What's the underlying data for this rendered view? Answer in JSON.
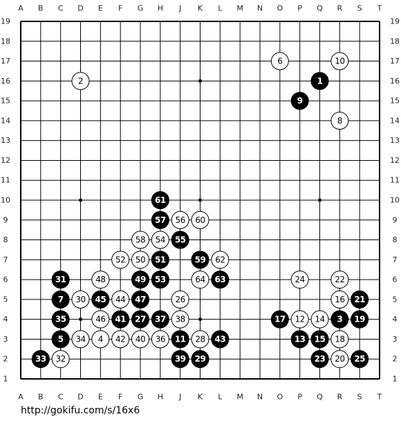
{
  "board": {
    "columns": [
      "A",
      "B",
      "C",
      "D",
      "E",
      "F",
      "G",
      "H",
      "J",
      "K",
      "L",
      "M",
      "N",
      "O",
      "P",
      "Q",
      "R",
      "S",
      "T"
    ],
    "rows": [
      19,
      18,
      17,
      16,
      15,
      14,
      13,
      12,
      11,
      10,
      9,
      8,
      7,
      6,
      5,
      4,
      3,
      2,
      1
    ],
    "stones": [
      {
        "move": 1,
        "color": "black",
        "col": "Q",
        "row": 16
      },
      {
        "move": 2,
        "color": "white",
        "col": "D",
        "row": 16
      },
      {
        "move": 3,
        "color": "black",
        "col": "R",
        "row": 4
      },
      {
        "move": 4,
        "color": "white",
        "col": "E",
        "row": 3
      },
      {
        "move": 5,
        "color": "black",
        "col": "C",
        "row": 3
      },
      {
        "move": 6,
        "color": "white",
        "col": "O",
        "row": 17
      },
      {
        "move": 7,
        "color": "black",
        "col": "C",
        "row": 5
      },
      {
        "move": 8,
        "color": "white",
        "col": "R",
        "row": 14
      },
      {
        "move": 9,
        "color": "black",
        "col": "P",
        "row": 15
      },
      {
        "move": 10,
        "color": "white",
        "col": "R",
        "row": 17
      },
      {
        "move": 11,
        "color": "black",
        "col": "J",
        "row": 3
      },
      {
        "move": 12,
        "color": "white",
        "col": "P",
        "row": 4
      },
      {
        "move": 13,
        "color": "black",
        "col": "P",
        "row": 3
      },
      {
        "move": 14,
        "color": "white",
        "col": "Q",
        "row": 4
      },
      {
        "move": 15,
        "color": "black",
        "col": "Q",
        "row": 3
      },
      {
        "move": 16,
        "color": "white",
        "col": "R",
        "row": 5
      },
      {
        "move": 17,
        "color": "black",
        "col": "O",
        "row": 4
      },
      {
        "move": 18,
        "color": "white",
        "col": "R",
        "row": 3
      },
      {
        "move": 19,
        "color": "black",
        "col": "S",
        "row": 4
      },
      {
        "move": 20,
        "color": "white",
        "col": "R",
        "row": 2
      },
      {
        "move": 21,
        "color": "black",
        "col": "S",
        "row": 5
      },
      {
        "move": 22,
        "color": "white",
        "col": "R",
        "row": 6
      },
      {
        "move": 23,
        "color": "black",
        "col": "Q",
        "row": 2
      },
      {
        "move": 24,
        "color": "white",
        "col": "P",
        "row": 6
      },
      {
        "move": 25,
        "color": "black",
        "col": "S",
        "row": 2
      },
      {
        "move": 26,
        "color": "white",
        "col": "J",
        "row": 5
      },
      {
        "move": 27,
        "color": "black",
        "col": "G",
        "row": 4
      },
      {
        "move": 28,
        "color": "white",
        "col": "K",
        "row": 3
      },
      {
        "move": 29,
        "color": "black",
        "col": "K",
        "row": 2
      },
      {
        "move": 30,
        "color": "white",
        "col": "D",
        "row": 5
      },
      {
        "move": 31,
        "color": "black",
        "col": "C",
        "row": 6
      },
      {
        "move": 32,
        "color": "white",
        "col": "C",
        "row": 2
      },
      {
        "move": 33,
        "color": "black",
        "col": "B",
        "row": 2
      },
      {
        "move": 34,
        "color": "white",
        "col": "D",
        "row": 3
      },
      {
        "move": 35,
        "color": "black",
        "col": "C",
        "row": 4
      },
      {
        "move": 36,
        "color": "white",
        "col": "H",
        "row": 3
      },
      {
        "move": 37,
        "color": "black",
        "col": "H",
        "row": 4
      },
      {
        "move": 38,
        "color": "white",
        "col": "J",
        "row": 4
      },
      {
        "move": 39,
        "color": "black",
        "col": "J",
        "row": 2
      },
      {
        "move": 40,
        "color": "white",
        "col": "G",
        "row": 3
      },
      {
        "move": 41,
        "color": "black",
        "col": "F",
        "row": 4
      },
      {
        "move": 42,
        "color": "white",
        "col": "F",
        "row": 3
      },
      {
        "move": 43,
        "color": "black",
        "col": "L",
        "row": 3
      },
      {
        "move": 44,
        "color": "white",
        "col": "F",
        "row": 5
      },
      {
        "move": 45,
        "color": "black",
        "col": "E",
        "row": 5
      },
      {
        "move": 46,
        "color": "white",
        "col": "E",
        "row": 4
      },
      {
        "move": 47,
        "color": "black",
        "col": "G",
        "row": 5
      },
      {
        "move": 48,
        "color": "white",
        "col": "E",
        "row": 6
      },
      {
        "move": 49,
        "color": "black",
        "col": "G",
        "row": 6
      },
      {
        "move": 50,
        "color": "white",
        "col": "G",
        "row": 7
      },
      {
        "move": 51,
        "color": "black",
        "col": "H",
        "row": 7
      },
      {
        "move": 52,
        "color": "white",
        "col": "F",
        "row": 7
      },
      {
        "move": 53,
        "color": "black",
        "col": "H",
        "row": 6
      },
      {
        "move": 54,
        "color": "white",
        "col": "H",
        "row": 8
      },
      {
        "move": 55,
        "color": "black",
        "col": "J",
        "row": 8
      },
      {
        "move": 56,
        "color": "white",
        "col": "J",
        "row": 9
      },
      {
        "move": 57,
        "color": "black",
        "col": "H",
        "row": 9
      },
      {
        "move": 58,
        "color": "white",
        "col": "G",
        "row": 8
      },
      {
        "move": 59,
        "color": "black",
        "col": "K",
        "row": 7
      },
      {
        "move": 60,
        "color": "white",
        "col": "K",
        "row": 9
      },
      {
        "move": 61,
        "color": "black",
        "col": "H",
        "row": 10
      },
      {
        "move": 62,
        "color": "white",
        "col": "L",
        "row": 7
      },
      {
        "move": 63,
        "color": "black",
        "col": "L",
        "row": 6
      },
      {
        "move": 64,
        "color": "white",
        "col": "K",
        "row": 6
      }
    ]
  },
  "footer": {
    "url": "http://gokifu.com/s/16x6"
  }
}
